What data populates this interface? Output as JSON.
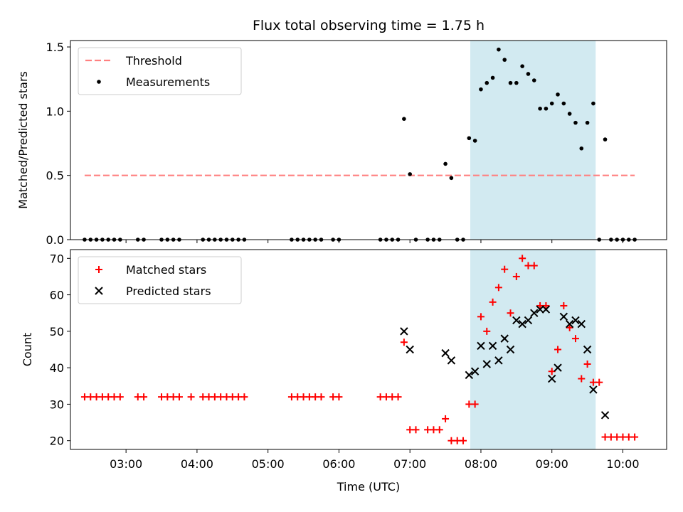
{
  "chart_data": [
    {
      "type": "scatter",
      "title": "Flux total observing time = 1.75 h",
      "ylabel": "Matched/Predicted stars",
      "xlabel": "",
      "xlim": [
        "02:13",
        "10:37"
      ],
      "ylim": [
        0,
        1.55
      ],
      "yticks": [
        "0.0",
        "0.5",
        "1.0",
        "1.5"
      ],
      "shaded_region": {
        "x_start": "07:51",
        "x_end": "09:37",
        "color": "#add8e6"
      },
      "threshold": {
        "name": "Threshold",
        "value": 0.5,
        "x_start": "02:25",
        "x_end": "10:10",
        "color": "#ff8080",
        "style": "dashed"
      },
      "legend": {
        "placement": "upper left",
        "entries": [
          "Threshold",
          "Measurements"
        ]
      },
      "series": [
        {
          "name": "Measurements",
          "color": "#000000",
          "marker": "dot",
          "x": [
            "02:25",
            "02:30",
            "02:35",
            "02:40",
            "02:45",
            "02:50",
            "02:55",
            "03:10",
            "03:15",
            "03:30",
            "03:35",
            "03:40",
            "03:45",
            "04:05",
            "04:10",
            "04:15",
            "04:20",
            "04:25",
            "04:30",
            "04:35",
            "04:40",
            "05:20",
            "05:25",
            "05:30",
            "05:35",
            "05:40",
            "05:45",
            "05:55",
            "06:00",
            "06:35",
            "06:40",
            "06:45",
            "06:50",
            "06:55",
            "07:00",
            "07:05",
            "07:15",
            "07:20",
            "07:25",
            "07:30",
            "07:35",
            "07:40",
            "07:45",
            "07:50",
            "07:55",
            "08:00",
            "08:05",
            "08:10",
            "08:15",
            "08:20",
            "08:25",
            "08:30",
            "08:35",
            "08:40",
            "08:45",
            "08:50",
            "08:55",
            "09:00",
            "09:05",
            "09:10",
            "09:15",
            "09:20",
            "09:25",
            "09:30",
            "09:35",
            "09:40",
            "09:45",
            "09:50",
            "09:55",
            "10:00",
            "10:05",
            "10:10"
          ],
          "y": [
            0,
            0,
            0,
            0,
            0,
            0,
            0,
            0,
            0,
            0,
            0,
            0,
            0,
            0,
            0,
            0,
            0,
            0,
            0,
            0,
            0,
            0,
            0,
            0,
            0,
            0,
            0,
            0,
            0,
            0,
            0,
            0,
            0,
            0.94,
            0.51,
            0,
            0,
            0,
            0,
            0.59,
            0.48,
            0,
            0,
            0.79,
            0.77,
            1.17,
            1.22,
            1.26,
            1.48,
            1.4,
            1.22,
            1.22,
            1.35,
            1.29,
            1.24,
            1.02,
            1.02,
            1.06,
            1.13,
            1.06,
            0.98,
            0.91,
            0.71,
            0.91,
            1.06,
            0,
            0.78,
            0,
            0,
            0,
            0,
            0
          ]
        }
      ]
    },
    {
      "type": "scatter",
      "title": "",
      "ylabel": "Count",
      "xlabel": "Time (UTC)",
      "xlim": [
        "02:13",
        "10:37"
      ],
      "ylim": [
        17.6,
        72.4
      ],
      "yticks": [
        "20",
        "30",
        "40",
        "50",
        "60",
        "70"
      ],
      "xticks": [
        "03:00",
        "04:00",
        "05:00",
        "06:00",
        "07:00",
        "08:00",
        "09:00",
        "10:00"
      ],
      "shaded_region": {
        "x_start": "07:51",
        "x_end": "09:37",
        "color": "#add8e6"
      },
      "legend": {
        "placement": "upper left",
        "entries": [
          "Matched stars",
          "Predicted stars"
        ]
      },
      "series": [
        {
          "name": "Matched stars",
          "color": "#ff0000",
          "marker": "plus",
          "x": [
            "02:25",
            "02:30",
            "02:35",
            "02:40",
            "02:45",
            "02:50",
            "02:55",
            "03:10",
            "03:15",
            "03:30",
            "03:35",
            "03:40",
            "03:45",
            "03:55",
            "04:05",
            "04:10",
            "04:15",
            "04:20",
            "04:25",
            "04:30",
            "04:35",
            "04:40",
            "05:20",
            "05:25",
            "05:30",
            "05:35",
            "05:40",
            "05:45",
            "05:55",
            "06:00",
            "06:35",
            "06:40",
            "06:45",
            "06:50",
            "06:55",
            "07:00",
            "07:05",
            "07:15",
            "07:20",
            "07:25",
            "07:30",
            "07:35",
            "07:40",
            "07:45",
            "07:50",
            "07:55",
            "08:00",
            "08:05",
            "08:10",
            "08:15",
            "08:20",
            "08:25",
            "08:30",
            "08:35",
            "08:40",
            "08:45",
            "08:50",
            "08:55",
            "09:00",
            "09:05",
            "09:10",
            "09:15",
            "09:20",
            "09:25",
            "09:30",
            "09:35",
            "09:40",
            "09:45",
            "09:50",
            "09:55",
            "10:00",
            "10:05",
            "10:10"
          ],
          "y": [
            32,
            32,
            32,
            32,
            32,
            32,
            32,
            32,
            32,
            32,
            32,
            32,
            32,
            32,
            32,
            32,
            32,
            32,
            32,
            32,
            32,
            32,
            32,
            32,
            32,
            32,
            32,
            32,
            32,
            32,
            32,
            32,
            32,
            32,
            47,
            23,
            23,
            23,
            23,
            23,
            26,
            20,
            20,
            20,
            30,
            30,
            54,
            50,
            58,
            62,
            67,
            55,
            65,
            70,
            68,
            68,
            57,
            57,
            39,
            45,
            57,
            51,
            48,
            37,
            41,
            36,
            36,
            21,
            21,
            21,
            21,
            21,
            21
          ]
        },
        {
          "name": "Predicted stars",
          "color": "#000000",
          "marker": "x",
          "x": [
            "06:55",
            "07:00",
            "07:30",
            "07:35",
            "07:50",
            "07:55",
            "08:00",
            "08:05",
            "08:10",
            "08:15",
            "08:20",
            "08:25",
            "08:30",
            "08:35",
            "08:40",
            "08:45",
            "08:50",
            "08:55",
            "09:00",
            "09:05",
            "09:10",
            "09:15",
            "09:20",
            "09:25",
            "09:30",
            "09:35",
            "09:45"
          ],
          "y": [
            50,
            45,
            44,
            42,
            38,
            39,
            46,
            41,
            46,
            42,
            48,
            45,
            53,
            52,
            53,
            55,
            56,
            56,
            37,
            40,
            54,
            52,
            53,
            52,
            45,
            34,
            27
          ]
        }
      ]
    }
  ]
}
